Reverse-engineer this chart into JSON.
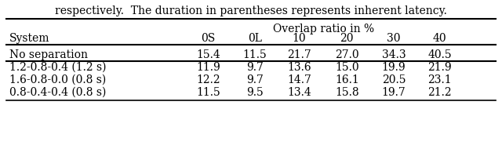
{
  "caption": "respectively.  The duration in parentheses represents inherent latency.",
  "header_top": "Overlap ratio in %",
  "col_headers": [
    "System",
    "0S",
    "0L",
    "10",
    "20",
    "30",
    "40"
  ],
  "rows": [
    [
      "No separation",
      "15.4",
      "11.5",
      "21.7",
      "27.0",
      "34.3",
      "40.5"
    ],
    [
      "1.2-0.8-0.4 (1.2 s)",
      "11.9",
      "9.7",
      "13.6",
      "15.0",
      "19.9",
      "21.9"
    ],
    [
      "1.6-0.8-0.0 (0.8 s)",
      "12.2",
      "9.7",
      "14.7",
      "16.1",
      "20.5",
      "23.1"
    ],
    [
      "0.8-0.4-0.4 (0.8 s)",
      "11.5",
      "9.5",
      "13.4",
      "15.8",
      "19.7",
      "21.2"
    ]
  ],
  "separator_rows": [
    0,
    1
  ],
  "fontsize": 10,
  "caption_fontsize": 10
}
